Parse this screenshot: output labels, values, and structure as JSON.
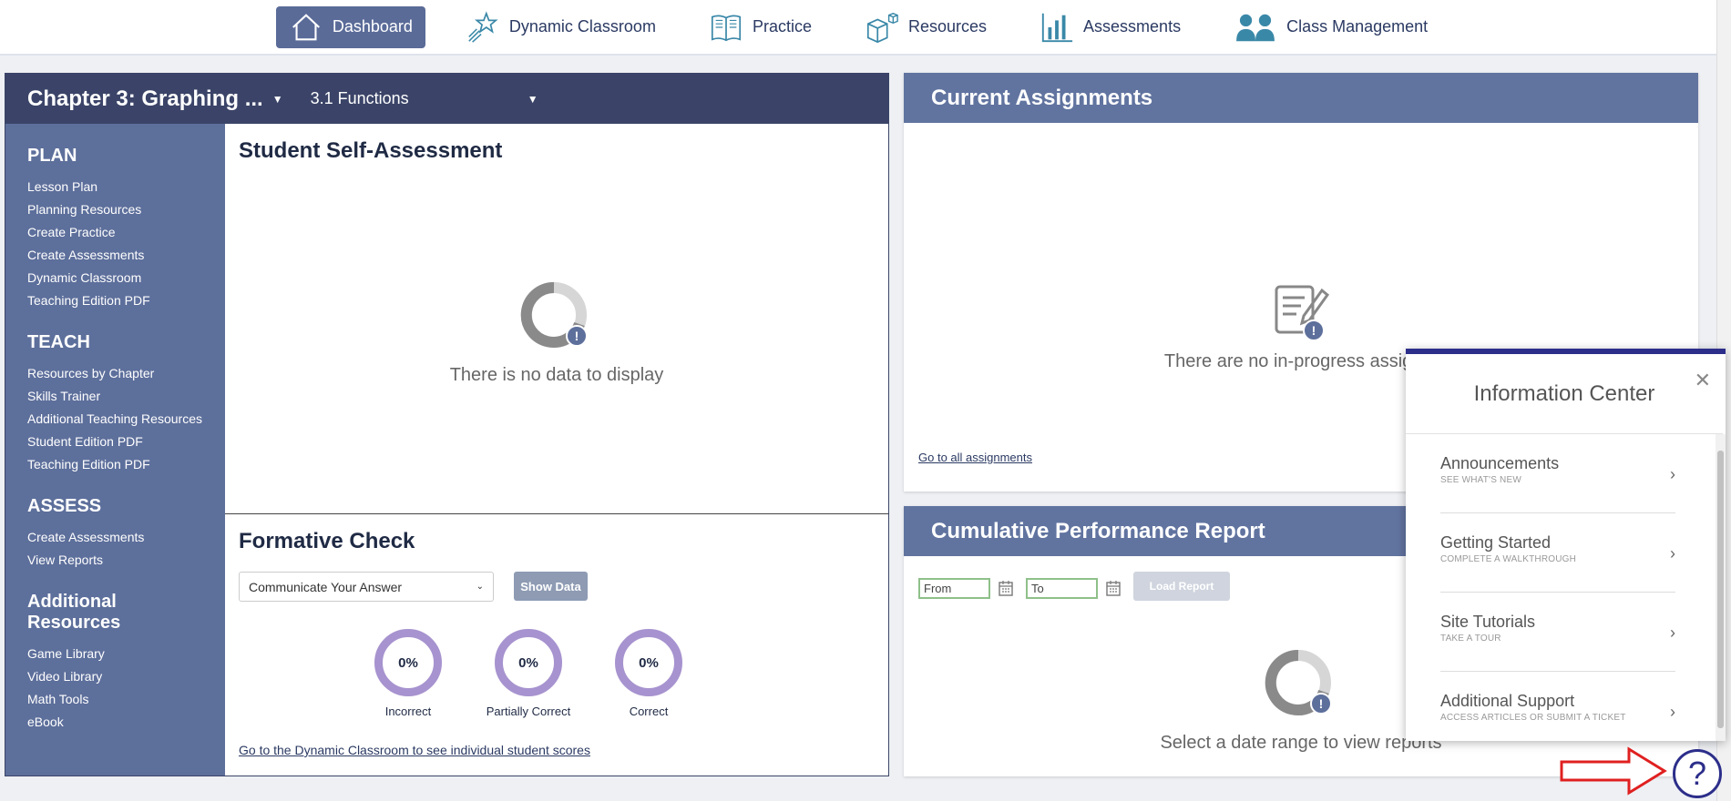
{
  "nav": {
    "items": [
      {
        "label": "Dashboard",
        "icon": "home-icon"
      },
      {
        "label": "Dynamic Classroom",
        "icon": "sparkle-wand-icon"
      },
      {
        "label": "Practice",
        "icon": "book-icon"
      },
      {
        "label": "Resources",
        "icon": "cubes-icon"
      },
      {
        "label": "Assessments",
        "icon": "bar-chart-icon"
      },
      {
        "label": "Class Management",
        "icon": "users-icon"
      }
    ]
  },
  "header": {
    "chapter": "Chapter 3: Graphing ...",
    "lesson": "3.1 Functions"
  },
  "sidebar": {
    "sections": [
      {
        "title": "PLAN",
        "links": [
          "Lesson Plan",
          "Planning Resources",
          "Create Practice",
          "Create Assessments",
          "Dynamic Classroom",
          "Teaching Edition PDF"
        ]
      },
      {
        "title": "TEACH",
        "links": [
          "Resources by Chapter",
          "Skills Trainer",
          "Additional Teaching Resources",
          "Student Edition PDF",
          "Teaching Edition PDF"
        ]
      },
      {
        "title": "ASSESS",
        "links": [
          "Create Assessments",
          "View Reports"
        ]
      },
      {
        "title": "Additional Resources",
        "links": [
          "Game Library",
          "Video Library",
          "Math Tools",
          "eBook"
        ]
      }
    ]
  },
  "self_assessment": {
    "title": "Student Self-Assessment",
    "empty_text": "There is no data to display"
  },
  "formative_check": {
    "title": "Formative Check",
    "select_value": "Communicate Your Answer",
    "show_button": "Show Data",
    "scores": [
      {
        "value": "0%",
        "label": "Incorrect"
      },
      {
        "value": "0%",
        "label": "Partially Correct"
      },
      {
        "value": "0%",
        "label": "Correct"
      }
    ],
    "link": "Go to the Dynamic Classroom to see individual student scores"
  },
  "current_assignments": {
    "title": "Current Assignments",
    "empty_text": "There are no in-progress assignm",
    "link": "Go to all assignments"
  },
  "cumulative_report": {
    "title": "Cumulative Performance Report",
    "from_placeholder": "From",
    "to_placeholder": "To",
    "load_button": "Load Report",
    "empty_text": "Select a date range to view reports"
  },
  "info_center": {
    "title": "Information Center",
    "close": "✕",
    "items": [
      {
        "label": "Announcements",
        "sub": "SEE WHAT'S NEW"
      },
      {
        "label": "Getting Started",
        "sub": "COMPLETE A WALKTHROUGH"
      },
      {
        "label": "Site Tutorials",
        "sub": "TAKE A TOUR"
      },
      {
        "label": "Additional Support",
        "sub": "ACCESS ARTICLES OR SUBMIT A TICKET"
      }
    ]
  },
  "help": {
    "glyph": "?"
  },
  "colors": {
    "nav_active": "#5a6b98",
    "sidebar": "#5d6f9b",
    "panel_header": "#3b4468",
    "right_header": "#6174a0",
    "score_ring": "#a793cf",
    "info_accent": "#2c2e8a",
    "arrow": "#e02020"
  }
}
